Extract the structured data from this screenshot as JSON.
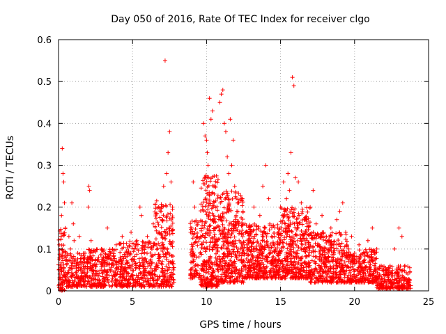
{
  "chart_data": {
    "type": "scatter",
    "title": "Day 050 of 2016, Rate Of TEC Index for receiver clgo",
    "xlabel": "GPS time / hours",
    "ylabel": "ROTI / TECUs",
    "xlim": [
      0,
      25
    ],
    "ylim": [
      0,
      0.6
    ],
    "xticks": [
      0,
      5,
      10,
      15,
      20,
      25
    ],
    "xtick_labels": [
      "0",
      "5",
      "10",
      "15",
      "20",
      "25"
    ],
    "yticks": [
      0,
      0.1,
      0.2,
      0.3,
      0.4,
      0.5,
      0.6
    ],
    "ytick_labels": [
      "0",
      "0.1",
      "0.2",
      "0.3",
      "0.4",
      "0.5",
      "0.6"
    ],
    "grid": true,
    "marker": "+",
    "marker_color": "#ff0000",
    "series": [
      {
        "name": "ROTI",
        "points": [
          [
            0.05,
            0.11
          ],
          [
            0.1,
            0.06
          ],
          [
            0.15,
            0.03
          ],
          [
            0.2,
            0.18
          ],
          [
            0.25,
            0.34
          ],
          [
            0.3,
            0.28
          ],
          [
            0.35,
            0.26
          ],
          [
            0.4,
            0.21
          ],
          [
            0.45,
            0.15
          ],
          [
            0.5,
            0.08
          ],
          [
            0.6,
            0.04
          ],
          [
            0.7,
            0.13
          ],
          [
            0.8,
            0.1
          ],
          [
            0.9,
            0.21
          ],
          [
            1.0,
            0.16
          ],
          [
            1.05,
            0.12
          ],
          [
            1.1,
            0.07
          ],
          [
            1.2,
            0.04
          ],
          [
            1.3,
            0.09
          ],
          [
            1.4,
            0.13
          ],
          [
            1.5,
            0.05
          ],
          [
            1.7,
            0.03
          ],
          [
            1.9,
            0.07
          ],
          [
            2.0,
            0.2
          ],
          [
            2.05,
            0.25
          ],
          [
            2.1,
            0.24
          ],
          [
            2.2,
            0.12
          ],
          [
            2.3,
            0.06
          ],
          [
            2.5,
            0.04
          ],
          [
            2.7,
            0.08
          ],
          [
            2.9,
            0.1
          ],
          [
            3.1,
            0.05
          ],
          [
            3.3,
            0.15
          ],
          [
            3.5,
            0.09
          ],
          [
            3.7,
            0.06
          ],
          [
            3.9,
            0.11
          ],
          [
            4.1,
            0.07
          ],
          [
            4.3,
            0.13
          ],
          [
            4.5,
            0.05
          ],
          [
            4.7,
            0.09
          ],
          [
            4.9,
            0.14
          ],
          [
            5.1,
            0.07
          ],
          [
            5.3,
            0.12
          ],
          [
            5.5,
            0.2
          ],
          [
            5.6,
            0.18
          ],
          [
            5.8,
            0.09
          ],
          [
            6.0,
            0.13
          ],
          [
            6.2,
            0.06
          ],
          [
            6.4,
            0.16
          ],
          [
            6.6,
            0.11
          ],
          [
            6.8,
            0.08
          ],
          [
            7.0,
            0.17
          ],
          [
            7.1,
            0.25
          ],
          [
            7.2,
            0.55
          ],
          [
            7.3,
            0.28
          ],
          [
            7.4,
            0.33
          ],
          [
            7.5,
            0.38
          ],
          [
            7.6,
            0.26
          ],
          [
            7.7,
            0.2
          ],
          [
            7.75,
            0.05
          ],
          [
            7.8,
            0.02
          ],
          [
            9.0,
            0.15
          ],
          [
            9.1,
            0.26
          ],
          [
            9.2,
            0.2
          ],
          [
            9.3,
            0.08
          ],
          [
            9.4,
            0.04
          ],
          [
            9.6,
            0.13
          ],
          [
            9.8,
            0.4
          ],
          [
            9.9,
            0.37
          ],
          [
            10.0,
            0.36
          ],
          [
            10.05,
            0.33
          ],
          [
            10.1,
            0.3
          ],
          [
            10.2,
            0.46
          ],
          [
            10.3,
            0.41
          ],
          [
            10.4,
            0.43
          ],
          [
            10.5,
            0.25
          ],
          [
            10.6,
            0.15
          ],
          [
            10.7,
            0.1
          ],
          [
            10.8,
            0.06
          ],
          [
            10.9,
            0.45
          ],
          [
            11.0,
            0.47
          ],
          [
            11.1,
            0.48
          ],
          [
            11.2,
            0.4
          ],
          [
            11.3,
            0.38
          ],
          [
            11.4,
            0.32
          ],
          [
            11.5,
            0.28
          ],
          [
            11.6,
            0.41
          ],
          [
            11.7,
            0.3
          ],
          [
            11.8,
            0.36
          ],
          [
            11.9,
            0.25
          ],
          [
            12.0,
            0.18
          ],
          [
            12.2,
            0.12
          ],
          [
            12.4,
            0.22
          ],
          [
            12.6,
            0.16
          ],
          [
            12.8,
            0.1
          ],
          [
            13.0,
            0.14
          ],
          [
            13.2,
            0.2
          ],
          [
            13.4,
            0.08
          ],
          [
            13.6,
            0.18
          ],
          [
            13.8,
            0.25
          ],
          [
            14.0,
            0.3
          ],
          [
            14.2,
            0.22
          ],
          [
            14.4,
            0.13
          ],
          [
            14.6,
            0.07
          ],
          [
            14.8,
            0.15
          ],
          [
            15.0,
            0.2
          ],
          [
            15.2,
            0.26
          ],
          [
            15.4,
            0.22
          ],
          [
            15.5,
            0.28
          ],
          [
            15.6,
            0.24
          ],
          [
            15.7,
            0.33
          ],
          [
            15.8,
            0.51
          ],
          [
            15.9,
            0.49
          ],
          [
            16.0,
            0.27
          ],
          [
            16.2,
            0.26
          ],
          [
            16.4,
            0.21
          ],
          [
            16.6,
            0.17
          ],
          [
            16.8,
            0.12
          ],
          [
            17.0,
            0.2
          ],
          [
            17.2,
            0.24
          ],
          [
            17.4,
            0.16
          ],
          [
            17.6,
            0.11
          ],
          [
            17.8,
            0.18
          ],
          [
            18.0,
            0.13
          ],
          [
            18.2,
            0.09
          ],
          [
            18.4,
            0.15
          ],
          [
            18.6,
            0.11
          ],
          [
            18.8,
            0.17
          ],
          [
            19.0,
            0.19
          ],
          [
            19.2,
            0.21
          ],
          [
            19.4,
            0.14
          ],
          [
            19.6,
            0.1
          ],
          [
            19.8,
            0.13
          ],
          [
            20.0,
            0.09
          ],
          [
            20.3,
            0.11
          ],
          [
            20.6,
            0.07
          ],
          [
            20.9,
            0.12
          ],
          [
            21.2,
            0.15
          ],
          [
            21.5,
            0.1
          ],
          [
            21.8,
            0.06
          ],
          [
            22.1,
            0.04
          ],
          [
            22.4,
            0.06
          ],
          [
            22.7,
            0.1
          ],
          [
            23.0,
            0.15
          ],
          [
            23.2,
            0.13
          ],
          [
            23.4,
            0.06
          ],
          [
            23.6,
            0.04
          ],
          [
            23.7,
            0.02
          ]
        ],
        "density_segments": [
          {
            "x": [
              0.0,
              0.5
            ],
            "y_min": 0.0,
            "y_max": 0.15,
            "count": 90
          },
          {
            "x": [
              0.5,
              2.0
            ],
            "y_min": 0.01,
            "y_max": 0.09,
            "count": 180
          },
          {
            "x": [
              2.0,
              4.0
            ],
            "y_min": 0.01,
            "y_max": 0.1,
            "count": 260
          },
          {
            "x": [
              4.0,
              6.5
            ],
            "y_min": 0.01,
            "y_max": 0.12,
            "count": 320
          },
          {
            "x": [
              6.5,
              7.8
            ],
            "y_min": 0.01,
            "y_max": 0.22,
            "count": 220
          },
          {
            "x": [
              8.9,
              9.6
            ],
            "y_min": 0.03,
            "y_max": 0.17,
            "count": 90
          },
          {
            "x": [
              9.6,
              10.8
            ],
            "y_min": 0.01,
            "y_max": 0.28,
            "count": 300
          },
          {
            "x": [
              10.8,
              12.5
            ],
            "y_min": 0.02,
            "y_max": 0.24,
            "count": 360
          },
          {
            "x": [
              12.5,
              15.0
            ],
            "y_min": 0.03,
            "y_max": 0.16,
            "count": 420
          },
          {
            "x": [
              15.0,
              17.0
            ],
            "y_min": 0.03,
            "y_max": 0.2,
            "count": 400
          },
          {
            "x": [
              17.0,
              19.5
            ],
            "y_min": 0.02,
            "y_max": 0.14,
            "count": 380
          },
          {
            "x": [
              19.5,
              21.5
            ],
            "y_min": 0.02,
            "y_max": 0.1,
            "count": 260
          },
          {
            "x": [
              21.5,
              23.8
            ],
            "y_min": 0.005,
            "y_max": 0.06,
            "count": 240
          }
        ]
      }
    ]
  }
}
